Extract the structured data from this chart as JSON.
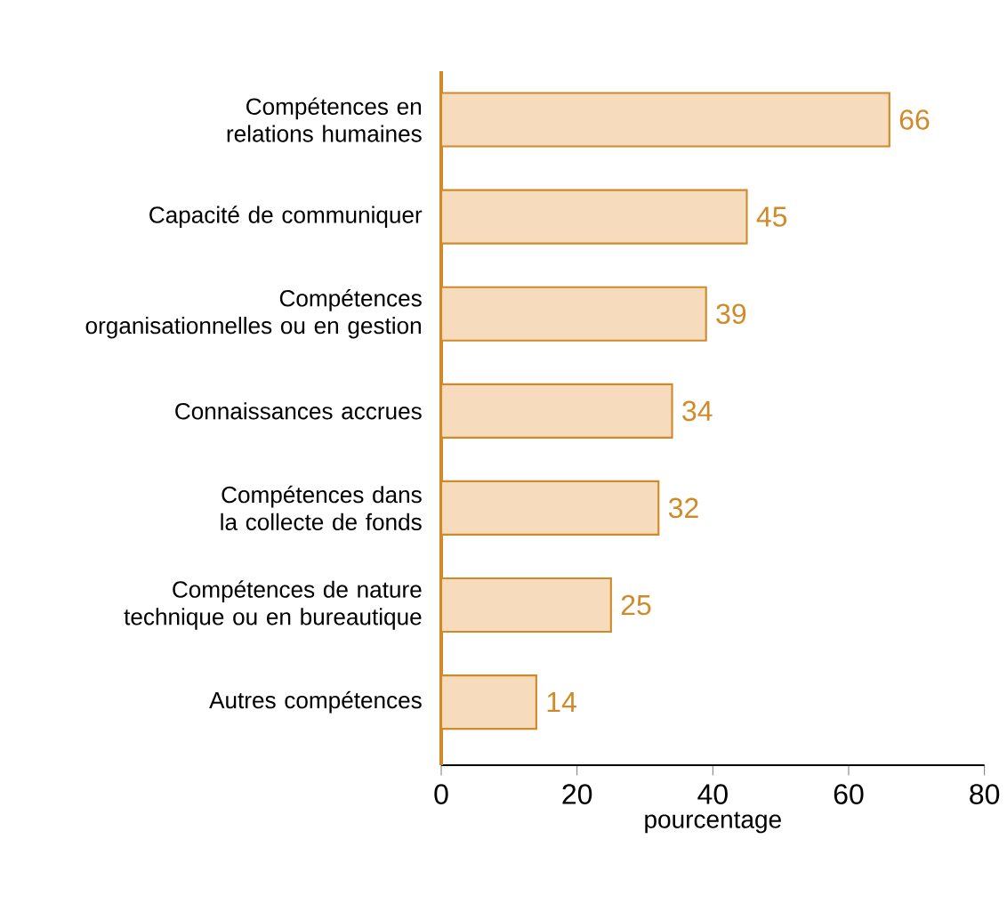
{
  "chart_data": {
    "type": "bar",
    "orientation": "horizontal",
    "xlabel": "pourcentage",
    "categories": [
      "Compétences en relations humaines",
      "Capacité de communiquer",
      "Compétences organisationnelles ou en gestion",
      "Connaissances accrues",
      "Compétences dans la collecte de fonds",
      "Compétences de nature technique ou en bureautique",
      "Autres compétences"
    ],
    "values": [
      66,
      45,
      39,
      34,
      32,
      25,
      14
    ],
    "color": "#f6dcbc",
    "xlim": [
      0,
      80
    ],
    "xticks": [
      0,
      20,
      40,
      60,
      80
    ],
    "grid": false,
    "data_labels": true
  }
}
